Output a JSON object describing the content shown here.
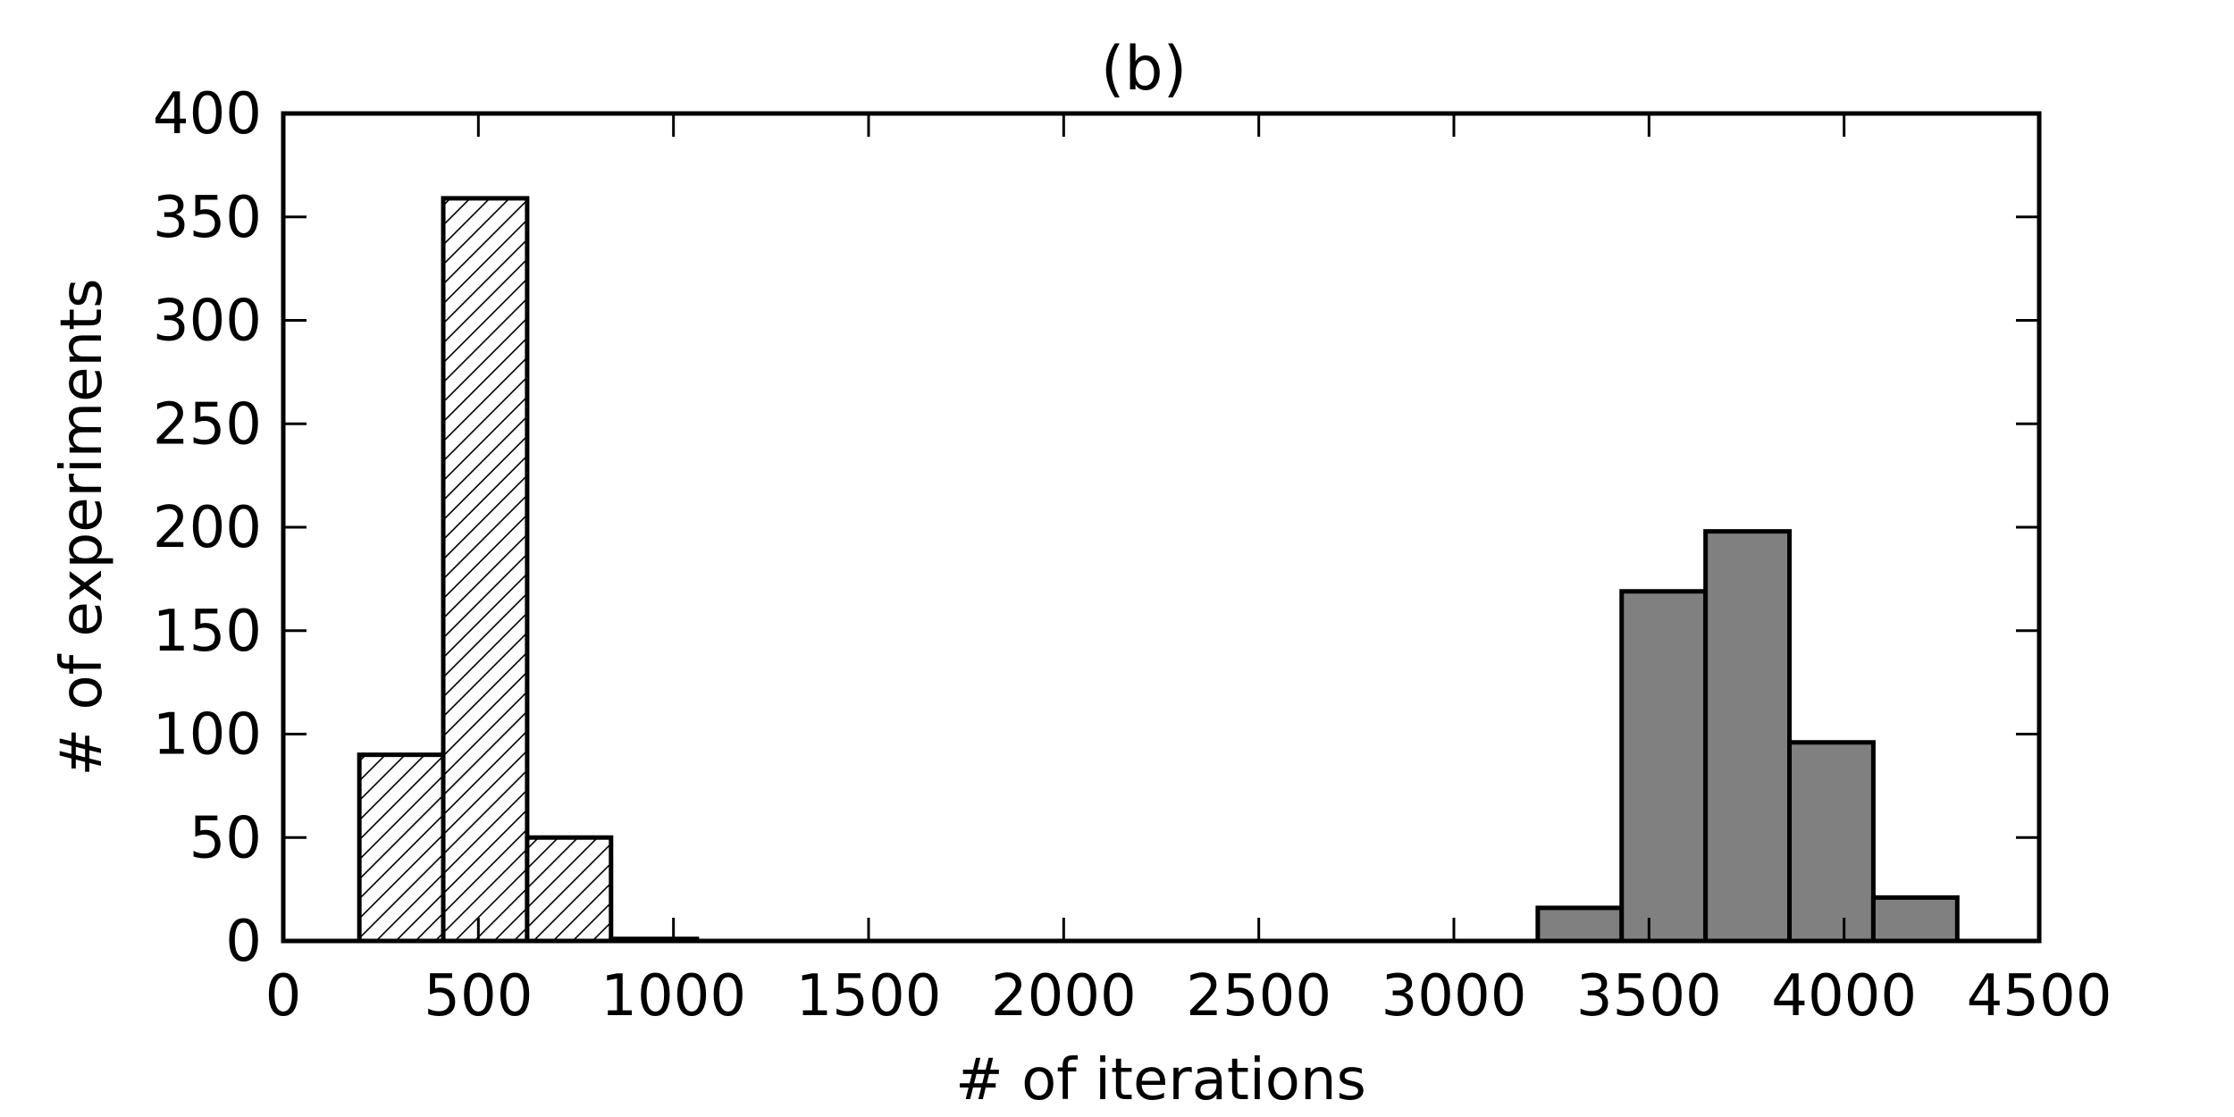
{
  "chart_data": {
    "type": "bar",
    "title": "(b)",
    "xlabel": "# of iterations",
    "ylabel": "# of experiments",
    "xlim": [
      0,
      4500
    ],
    "ylim": [
      0,
      400
    ],
    "xticks": [
      0,
      500,
      1000,
      1500,
      2000,
      2500,
      3000,
      3500,
      4000,
      4500
    ],
    "yticks": [
      0,
      50,
      100,
      150,
      200,
      250,
      300,
      350,
      400
    ],
    "grid": false,
    "series": [
      {
        "style": "hatched",
        "color": "#ffffff",
        "bins": [
          {
            "x0": 195,
            "x1": 410,
            "value": 90
          },
          {
            "x0": 410,
            "x1": 625,
            "value": 359
          },
          {
            "x0": 625,
            "x1": 840,
            "value": 50
          },
          {
            "x0": 840,
            "x1": 1060,
            "value": 1
          }
        ]
      },
      {
        "style": "solid",
        "color": "#808080",
        "bins": [
          {
            "x0": 3215,
            "x1": 3430,
            "value": 16
          },
          {
            "x0": 3430,
            "x1": 3645,
            "value": 169
          },
          {
            "x0": 3645,
            "x1": 3860,
            "value": 198
          },
          {
            "x0": 3860,
            "x1": 4075,
            "value": 96
          },
          {
            "x0": 4075,
            "x1": 4290,
            "value": 21
          }
        ]
      }
    ]
  }
}
